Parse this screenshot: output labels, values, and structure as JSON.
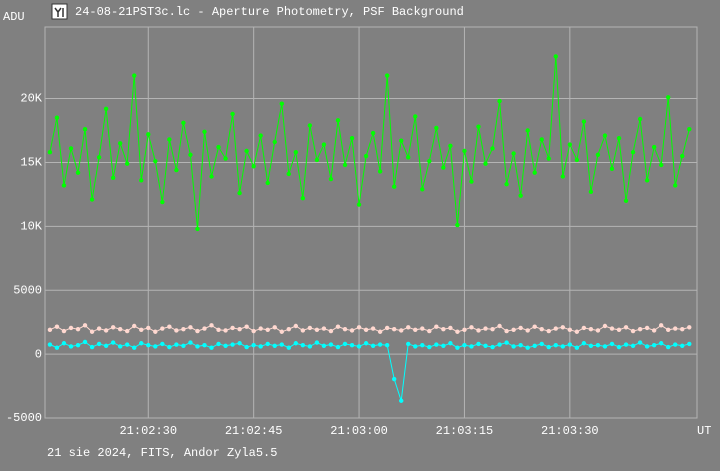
{
  "chart_data": {
    "type": "line",
    "title": "24-08-21PST3c.lc - Aperture Photometry, PSF Background",
    "footer": "21 sie 2024, FITS, Andor Zyla5.5",
    "y_label": "ADU",
    "x_label": "UT",
    "x": [
      136,
      137,
      138,
      139,
      140,
      141,
      142,
      143,
      144,
      145,
      146,
      147,
      148,
      149,
      150,
      151,
      152,
      153,
      154,
      155,
      156,
      157,
      158,
      159,
      160,
      161,
      162,
      163,
      164,
      165,
      166,
      167,
      168,
      169,
      170,
      171,
      172,
      173,
      174,
      175,
      176,
      177,
      178,
      179,
      180,
      181,
      182,
      183,
      184,
      185,
      186,
      187,
      188,
      189,
      190,
      191,
      192,
      193,
      194,
      195,
      196,
      197,
      198,
      199,
      200,
      201,
      202,
      203,
      204,
      205,
      206,
      207,
      208,
      209,
      210,
      211,
      212,
      213,
      214,
      215,
      216,
      217,
      218,
      219,
      220,
      221,
      222,
      223,
      224,
      225,
      226,
      227
    ],
    "series": [
      {
        "color": "#00ff00",
        "values": [
          15800,
          18500,
          13200,
          16100,
          14200,
          17600,
          12100,
          15400,
          19200,
          13800,
          16500,
          14900,
          21800,
          13600,
          17200,
          15100,
          11900,
          16800,
          14400,
          18100,
          15600,
          9800,
          17400,
          13900,
          16200,
          15300,
          18800,
          12600,
          15900,
          14700,
          17100,
          13400,
          16600,
          19600,
          14100,
          15800,
          12200,
          17900,
          15200,
          16400,
          13700,
          18300,
          14800,
          16900,
          11700,
          15500,
          17300,
          14300,
          21800,
          13100,
          16700,
          15400,
          18600,
          12900,
          15100,
          17700,
          14600,
          16300,
          10100,
          15900,
          13500,
          17800,
          14900,
          16100,
          19800,
          13300,
          15700,
          12400,
          17500,
          14200,
          16800,
          15300,
          23300,
          13900,
          16400,
          15200,
          18200,
          12700,
          15600,
          17100,
          14500,
          16900,
          12000,
          15800,
          18400,
          13600,
          16200,
          14800,
          20100,
          13200,
          15500,
          17600
        ]
      },
      {
        "color": "#ffd8d0",
        "values": [
          1900,
          2150,
          1800,
          2050,
          1950,
          2250,
          1750,
          2000,
          1850,
          2100,
          1950,
          1800,
          2200,
          1900,
          2050,
          1750,
          2000,
          2150,
          1850,
          1950,
          2100,
          1800,
          2000,
          2250,
          1900,
          1850,
          2050,
          1950,
          2150,
          1800,
          2000,
          1900,
          2100,
          1750,
          1950,
          2200,
          1850,
          2050,
          1900,
          2000,
          1800,
          2150,
          1950,
          1850,
          2100,
          1900,
          2000,
          1750,
          2050,
          1950,
          1850,
          2100,
          1900,
          2000,
          1800,
          2150,
          1950,
          2050,
          1750,
          1900,
          2100,
          1850,
          2000,
          1950,
          2200,
          1800,
          1900,
          2050,
          1850,
          2150,
          1950,
          1800,
          2000,
          2100,
          1900,
          1750,
          2050,
          1950,
          1850,
          2200,
          2000,
          1900,
          2100,
          1800,
          1950,
          2050,
          1850,
          2250,
          1900,
          2000,
          1950,
          2100
        ]
      },
      {
        "color": "#00ffff",
        "values": [
          750,
          500,
          850,
          600,
          700,
          950,
          550,
          800,
          650,
          900,
          600,
          750,
          500,
          850,
          700,
          600,
          800,
          550,
          750,
          650,
          900,
          600,
          700,
          500,
          800,
          650,
          750,
          850,
          550,
          700,
          600,
          800,
          650,
          750,
          500,
          850,
          700,
          600,
          900,
          650,
          750,
          550,
          800,
          700,
          600,
          850,
          650,
          750,
          700,
          -1950,
          -3650,
          800,
          600,
          700,
          550,
          750,
          650,
          850,
          500,
          700,
          600,
          800,
          650,
          550,
          750,
          900,
          600,
          700,
          500,
          650,
          800,
          550,
          700,
          600,
          750,
          500,
          850,
          650,
          700,
          600,
          800,
          550,
          750,
          650,
          900,
          600,
          700,
          850,
          550,
          750,
          650,
          800
        ]
      }
    ],
    "xlim": [
      135.3,
      228.1
    ],
    "xticks": [
      {
        "value": 150,
        "label": "21:02:30"
      },
      {
        "value": 165,
        "label": "21:02:45"
      },
      {
        "value": 180,
        "label": "21:03:00"
      },
      {
        "value": 195,
        "label": "21:03:15"
      },
      {
        "value": 210,
        "label": "21:03:30"
      }
    ],
    "ylim": [
      -5000,
      25600
    ],
    "yticks": [
      -5000,
      0,
      5000,
      {
        "value": 10000,
        "label": "10K"
      },
      {
        "value": 15000,
        "label": "15K"
      },
      {
        "value": 20000,
        "label": "20K"
      }
    ],
    "grid": true
  }
}
